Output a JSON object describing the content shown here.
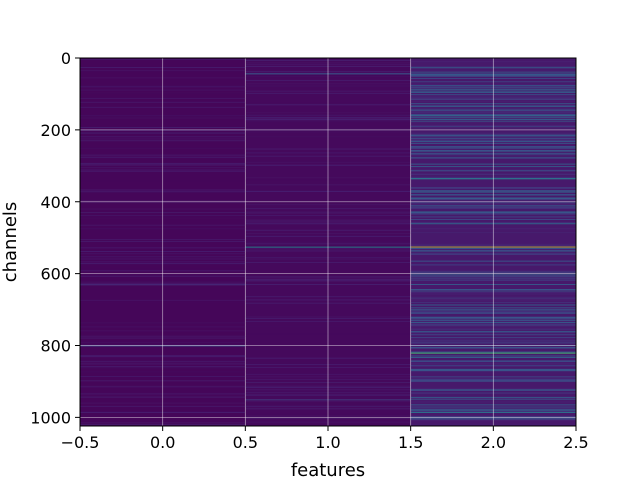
{
  "chart_data": {
    "type": "heatmap",
    "title": "",
    "xlabel": "features",
    "ylabel": "channels",
    "xlim": [
      -0.5,
      2.5
    ],
    "ylim": [
      1024,
      0
    ],
    "x_ticks": [
      "−0.5",
      "0.0",
      "0.5",
      "1.0",
      "1.5",
      "2.0",
      "2.5"
    ],
    "x_tick_values": [
      -0.5,
      0.0,
      0.5,
      1.0,
      1.5,
      2.0,
      2.5
    ],
    "y_ticks": [
      "0",
      "200",
      "400",
      "600",
      "800",
      "1000"
    ],
    "y_tick_values": [
      0,
      200,
      400,
      600,
      800,
      1000
    ],
    "grid": true,
    "colormap": "viridis",
    "n_channels": 1024,
    "n_features": 3,
    "column_base_levels": [
      0.02,
      0.03,
      0.09
    ],
    "highlights": [
      {
        "feature": 0,
        "channel": 800,
        "value": 0.25
      },
      {
        "feature": 0,
        "channel": 630,
        "value": 0.15
      },
      {
        "feature": 1,
        "channel": 43,
        "value": 0.3
      },
      {
        "feature": 1,
        "channel": 525,
        "value": 0.45
      },
      {
        "feature": 1,
        "channel": 950,
        "value": 0.2
      },
      {
        "feature": 2,
        "channel": 525,
        "value": 0.95
      },
      {
        "feature": 2,
        "channel": 820,
        "value": 0.7
      },
      {
        "feature": 2,
        "channel": 160,
        "value": 0.45
      },
      {
        "feature": 2,
        "channel": 175,
        "value": 0.4
      },
      {
        "feature": 2,
        "channel": 335,
        "value": 0.45
      },
      {
        "feature": 2,
        "channel": 460,
        "value": 0.35
      },
      {
        "feature": 2,
        "channel": 600,
        "value": 0.35
      },
      {
        "feature": 2,
        "channel": 985,
        "value": 0.4
      },
      {
        "feature": 2,
        "channel": 45,
        "value": 0.3
      },
      {
        "feature": 2,
        "channel": 95,
        "value": 0.3
      },
      {
        "feature": 2,
        "channel": 700,
        "value": 0.3
      },
      {
        "feature": 2,
        "channel": 760,
        "value": 0.3
      }
    ]
  }
}
